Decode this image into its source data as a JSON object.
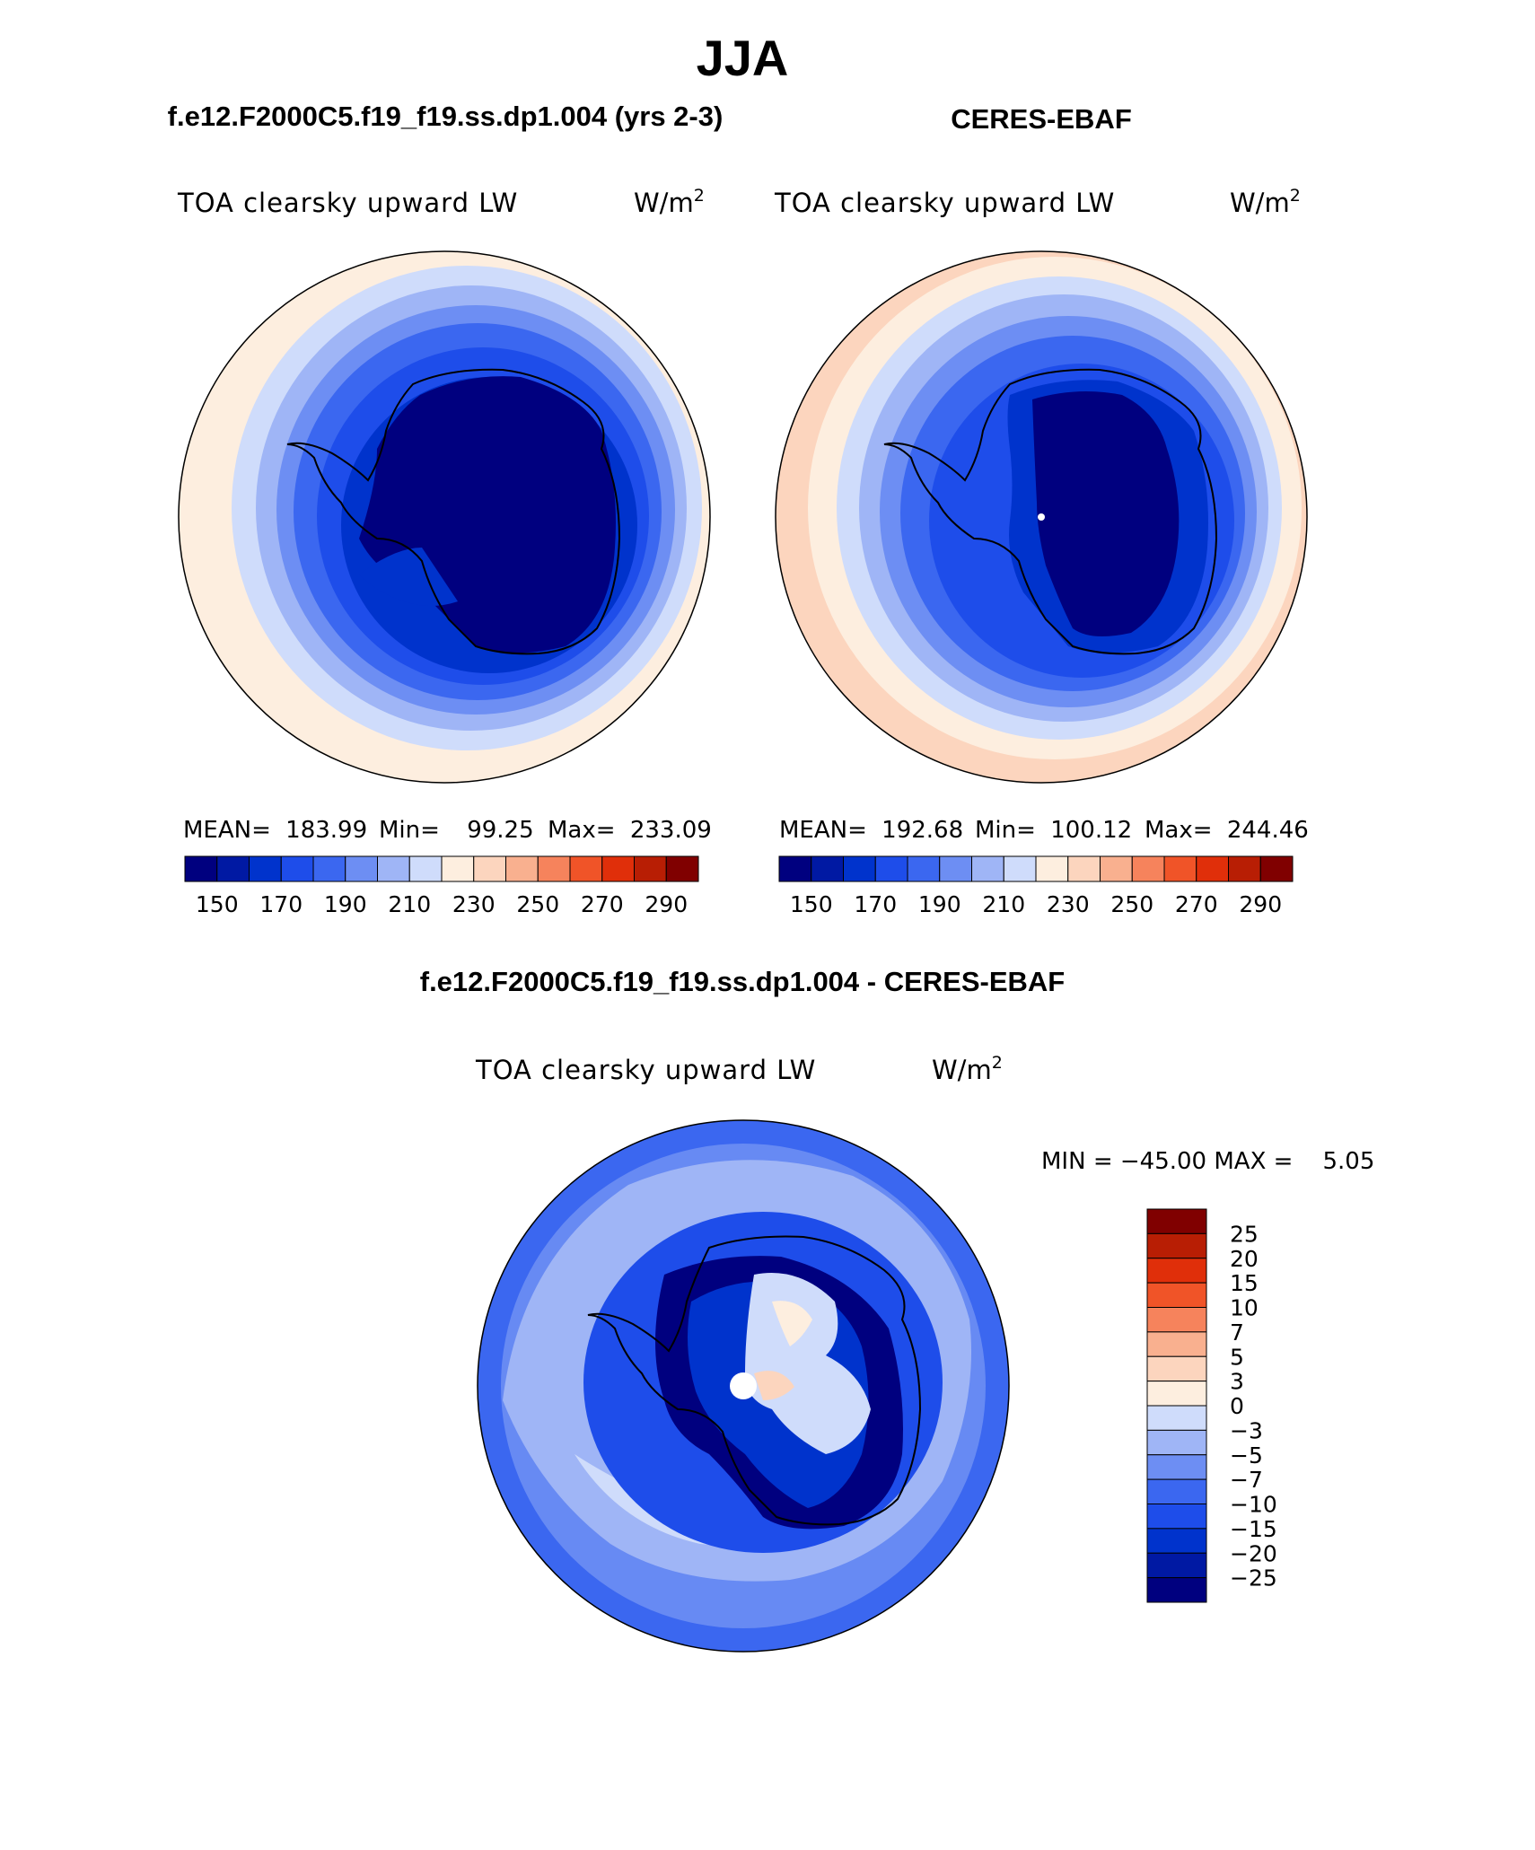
{
  "figure": {
    "season": "JJA",
    "left_panel": {
      "case": "f.e12.F2000C5.f19_f19.ss.dp1.004 (yrs 2-3)",
      "variable": "TOA clearsky upward LW",
      "units": "W/m",
      "units_exp": "2",
      "stats": {
        "mean_label": "MEAN=",
        "mean": "183.99",
        "min_label": "Min=",
        "min": "99.25",
        "max_label": "Max=",
        "max": "233.09"
      }
    },
    "right_panel": {
      "case": "CERES-EBAF",
      "variable": "TOA clearsky upward LW",
      "units": "W/m",
      "units_exp": "2",
      "stats": {
        "mean_label": "MEAN=",
        "mean": "192.68",
        "min_label": "Min=",
        "min": "100.12",
        "max_label": "Max=",
        "max": "244.46"
      }
    },
    "diff_panel": {
      "title": "f.e12.F2000C5.f19_f19.ss.dp1.004 - CERES-EBAF",
      "variable": "TOA clearsky upward LW",
      "units": "W/m",
      "units_exp": "2",
      "minmax_text": "MIN = −45.00 MAX =    5.05"
    }
  },
  "chart_data": [
    {
      "type": "heatmap",
      "projection": "south-polar-stereographic",
      "title": "f.e12.F2000C5.f19_f19.ss.dp1.004 (yrs 2-3)",
      "variable": "TOA clearsky upward LW",
      "units": "W/m2",
      "mean": 183.99,
      "min": 99.25,
      "max": 233.09,
      "contour_levels": [
        150,
        160,
        170,
        180,
        190,
        200,
        210,
        220,
        230,
        240,
        250,
        260,
        270,
        280,
        290
      ],
      "colorbar_tick_labels": [
        "150",
        "170",
        "190",
        "210",
        "230",
        "250",
        "270",
        "290"
      ],
      "colorbar_colors": [
        "#00007f",
        "#0019a3",
        "#0033cc",
        "#1e4dea",
        "#3b67f0",
        "#6d8ef3",
        "#9fb5f6",
        "#cfdcfb",
        "#fdeedf",
        "#fcd5be",
        "#f9b08f",
        "#f6835c",
        "#f05428",
        "#e02f0a",
        "#b81e04",
        "#800000"
      ]
    },
    {
      "type": "heatmap",
      "projection": "south-polar-stereographic",
      "title": "CERES-EBAF",
      "variable": "TOA clearsky upward LW",
      "units": "W/m2",
      "mean": 192.68,
      "min": 100.12,
      "max": 244.46,
      "contour_levels": [
        150,
        160,
        170,
        180,
        190,
        200,
        210,
        220,
        230,
        240,
        250,
        260,
        270,
        280,
        290
      ],
      "colorbar_tick_labels": [
        "150",
        "170",
        "190",
        "210",
        "230",
        "250",
        "270",
        "290"
      ],
      "colorbar_colors": [
        "#00007f",
        "#0019a3",
        "#0033cc",
        "#1e4dea",
        "#3b67f0",
        "#6d8ef3",
        "#9fb5f6",
        "#cfdcfb",
        "#fdeedf",
        "#fcd5be",
        "#f9b08f",
        "#f6835c",
        "#f05428",
        "#e02f0a",
        "#b81e04",
        "#800000"
      ]
    },
    {
      "type": "heatmap",
      "projection": "south-polar-stereographic",
      "title": "f.e12.F2000C5.f19_f19.ss.dp1.004 - CERES-EBAF",
      "variable": "TOA clearsky upward LW",
      "units": "W/m2",
      "min": -45.0,
      "max": 5.05,
      "contour_levels": [
        -25,
        -20,
        -15,
        -10,
        -7,
        -5,
        -3,
        0,
        3,
        5,
        7,
        10,
        15,
        20,
        25
      ],
      "colorbar_tick_labels": [
        "25",
        "20",
        "15",
        "10",
        "7",
        "5",
        "3",
        "0",
        "−3",
        "−5",
        "−7",
        "−10",
        "−15",
        "−20",
        "−25"
      ],
      "colorbar_colors_top_to_bottom": [
        "#800000",
        "#b81e04",
        "#e02f0a",
        "#f05428",
        "#f6835c",
        "#f9b08f",
        "#fcd5be",
        "#fdeedf",
        "#cfdcfb",
        "#9fb5f6",
        "#6d8ef3",
        "#3b67f0",
        "#1e4dea",
        "#0033cc",
        "#0019a3",
        "#00007f"
      ]
    }
  ]
}
